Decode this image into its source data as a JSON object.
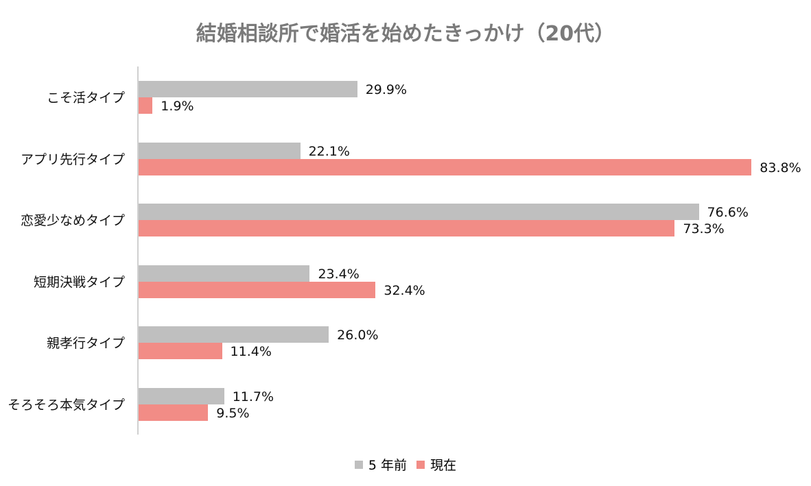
{
  "chart_data": {
    "type": "bar",
    "orientation": "horizontal",
    "title": "結婚相談所で婚活を始めたきっかけ（20代）",
    "categories": [
      "こそ活タイプ",
      "アプリ先行タイプ",
      "恋愛少なめタイプ",
      "短期決戦タイプ",
      "親孝行タイプ",
      "そろそろ本気タイプ"
    ],
    "series": [
      {
        "name": "5 年前",
        "color": "#bfbfbf",
        "values": [
          29.9,
          22.1,
          76.6,
          23.4,
          26.0,
          11.7
        ],
        "labels": [
          "29.9%",
          "22.1%",
          "76.6%",
          "23.4%",
          "26.0%",
          "11.7%"
        ]
      },
      {
        "name": "現在",
        "color": "#f28c86",
        "values": [
          1.9,
          83.8,
          73.3,
          32.4,
          11.4,
          9.5
        ],
        "labels": [
          "1.9%",
          "83.8%",
          "73.3%",
          "32.4%",
          "11.4%",
          "9.5%"
        ]
      }
    ],
    "xlabel": "",
    "ylabel": "",
    "xlim": [
      0,
      85
    ],
    "grid": false,
    "legend_position": "bottom",
    "data_labels": true
  },
  "legend": {
    "items": [
      {
        "label": "5 年前",
        "color": "#bfbfbf"
      },
      {
        "label": "現在",
        "color": "#f28c86"
      }
    ]
  }
}
